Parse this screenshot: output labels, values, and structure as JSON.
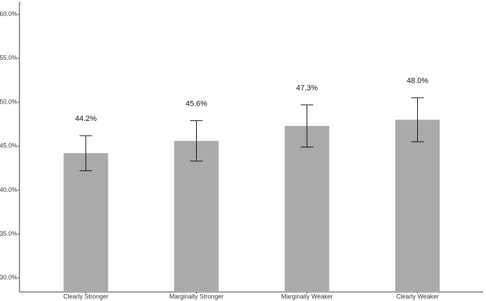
{
  "chart_data": {
    "type": "bar",
    "categories": [
      "Clearly Stronger",
      "Marginally Stronger",
      "Marginally Weaker",
      "Clearly Weaker"
    ],
    "values": [
      44.2,
      45.6,
      47.3,
      48.0
    ],
    "value_labels": [
      "44.2%",
      "45.6%",
      "47.3%",
      "48.0%"
    ],
    "errors": [
      2.0,
      2.3,
      2.4,
      2.5
    ],
    "color": "#aaaaaa",
    "ylim": [
      28.4,
      61.4
    ],
    "yticks": [
      {
        "value": 30,
        "label": "30.0%"
      },
      {
        "value": 35,
        "label": "35.0%"
      },
      {
        "value": 40,
        "label": "40.0%"
      },
      {
        "value": 45,
        "label": "45.0%"
      },
      {
        "value": 50,
        "label": "50.0%"
      },
      {
        "value": 55,
        "label": "55.0%"
      },
      {
        "value": 60,
        "label": "60.0%"
      }
    ],
    "grid": false
  }
}
